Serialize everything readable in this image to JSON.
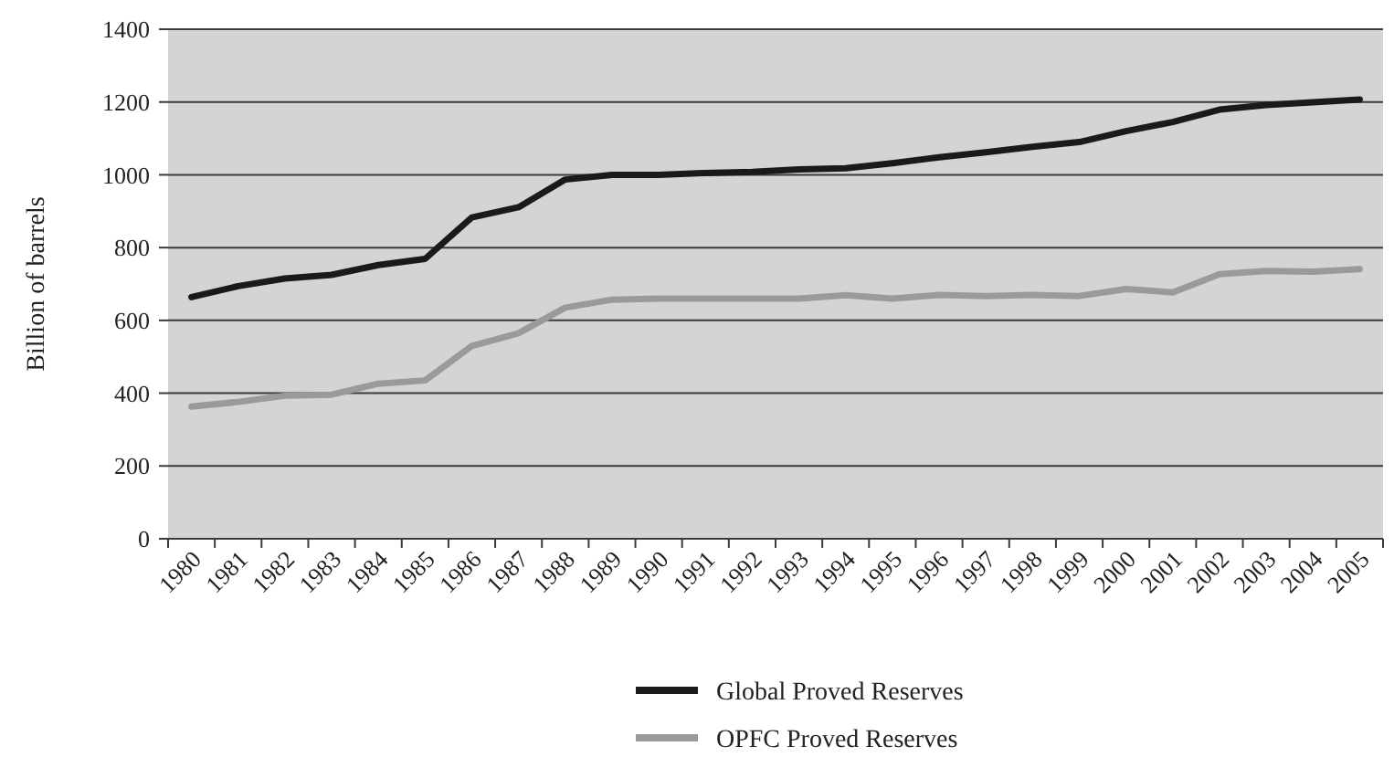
{
  "chart_data": {
    "type": "line",
    "ylabel": "Billion of barrels",
    "categories": [
      "1980",
      "1981",
      "1982",
      "1983",
      "1984",
      "1985",
      "1986",
      "1987",
      "1988",
      "1989",
      "1990",
      "1991",
      "1992",
      "1993",
      "1994",
      "1995",
      "1996",
      "1997",
      "1998",
      "1999",
      "2000",
      "2001",
      "2002",
      "2003",
      "2004",
      "2005"
    ],
    "series": [
      {
        "name": "Global Proved Reserves",
        "color": "#1a1a1a",
        "values": [
          664,
          694,
          715,
          725,
          752,
          769,
          883,
          911,
          987,
          1000,
          1000,
          1005,
          1008,
          1015,
          1018,
          1032,
          1048,
          1062,
          1077,
          1090,
          1120,
          1145,
          1179,
          1192,
          1199,
          1207
        ]
      },
      {
        "name": "OPFC Proved Reserves",
        "color": "#9a9a9a",
        "values": [
          363,
          376,
          393,
          396,
          426,
          435,
          530,
          565,
          635,
          657,
          660,
          660,
          660,
          660,
          669,
          660,
          670,
          667,
          670,
          667,
          686,
          677,
          727,
          736,
          734,
          741
        ]
      }
    ],
    "ylim": [
      0,
      1400
    ],
    "yticks": [
      0,
      200,
      400,
      600,
      800,
      1000,
      1200,
      1400
    ],
    "grid": "y",
    "legend": "bottom",
    "marker": "none",
    "line_style": "solid"
  }
}
